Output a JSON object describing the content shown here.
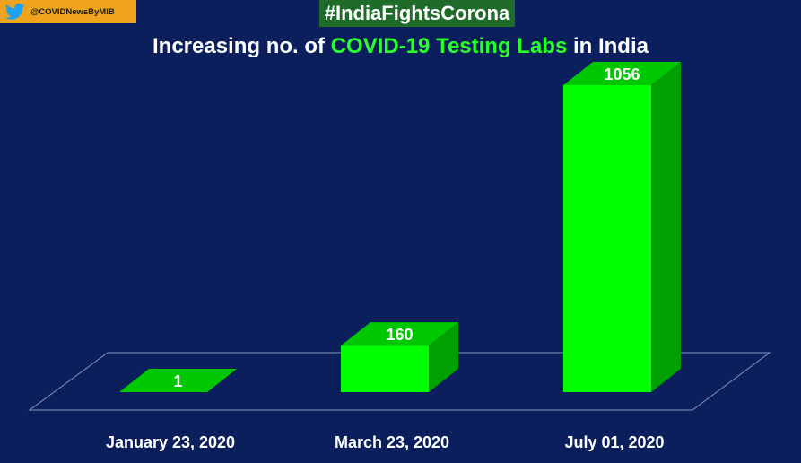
{
  "header": {
    "twitter_handle": "@COVIDNewsByMIB",
    "hashtag": "#IndiaFightsCorona"
  },
  "title": {
    "prefix": "Increasing no. of ",
    "highlight": "COVID-19 Testing Labs",
    "suffix": " in India"
  },
  "colors": {
    "background": "#0a1f5c",
    "bar_front": "#00ff00",
    "bar_side": "#00a000",
    "bar_top": "#00c800",
    "badge": "#f0a41e",
    "hashtag_bg": "#1e6b2a"
  },
  "chart_data": {
    "type": "bar",
    "title": "Increasing no. of COVID-19 Testing Labs in India",
    "categories": [
      "January 23, 2020",
      "March 23, 2020",
      "July 01, 2020"
    ],
    "values": [
      1,
      160,
      1056
    ],
    "xlabel": "",
    "ylabel": "",
    "ylim": [
      0,
      1056
    ],
    "grid": false,
    "legend": "none"
  }
}
